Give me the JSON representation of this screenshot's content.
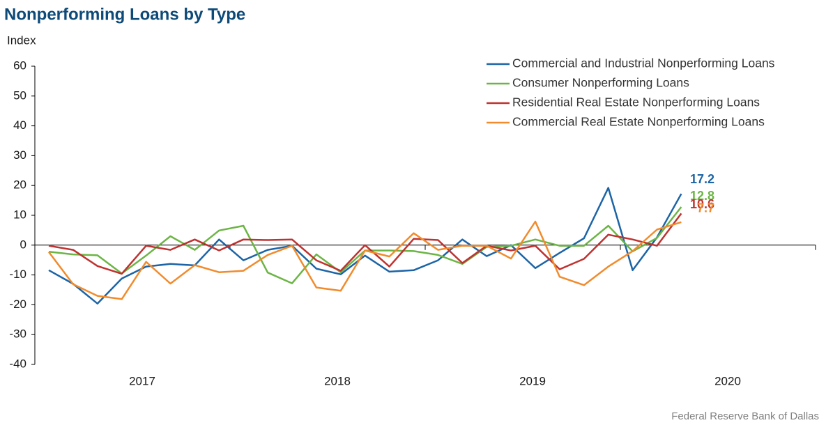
{
  "chart_data": {
    "type": "line",
    "title": "Nonperforming Loans by Type",
    "y_axis_label": "Index",
    "source": "Federal Reserve Bank of Dallas",
    "categories": [
      null,
      null,
      null,
      null,
      null,
      null,
      null,
      null,
      null,
      null,
      null,
      null,
      null,
      null,
      null,
      null,
      null,
      null,
      null,
      null,
      null,
      null,
      null,
      null,
      null,
      null,
      null
    ],
    "x_labels": [
      "2017",
      "2018",
      "2019",
      "2020"
    ],
    "ylim": [
      -40,
      60
    ],
    "yticks": [
      -40,
      -30,
      -20,
      -10,
      0,
      10,
      20,
      30,
      40,
      50,
      60
    ],
    "grid": false,
    "legend": "top-right",
    "series": [
      {
        "name": "Commercial and Industrial Nonperforming Loans",
        "color": "#1c64a6",
        "values": [
          -8.4,
          -13,
          -19.6,
          -11.2,
          -7.2,
          -6.3,
          -6.8,
          1.9,
          -5.1,
          -1.6,
          -0.2,
          -7.9,
          -9.8,
          -3.5,
          -8.9,
          -8.4,
          -5.1,
          1.9,
          -3.7,
          0,
          -7.7,
          -2.6,
          2.3,
          19.2,
          -8.4,
          2.6,
          17.2
        ]
      },
      {
        "name": "Consumer Nonperforming Loans",
        "color": "#6cb545",
        "values": [
          -2.2,
          -3.1,
          -3.4,
          -9.5,
          -3.5,
          3.0,
          -1.6,
          4.9,
          6.5,
          -9.2,
          -12.8,
          -3.1,
          -9.1,
          -1.8,
          -1.8,
          -2.0,
          -3.3,
          -6.3,
          -0.6,
          -0.2,
          1.9,
          -0.2,
          -0.2,
          6.5,
          -2.1,
          2.4,
          12.8
        ]
      },
      {
        "name": "Residential Real Estate Nonperforming Loans",
        "color": "#be3230",
        "values": [
          -0.2,
          -1.6,
          -7.0,
          -9.6,
          -0.2,
          -1.6,
          1.9,
          -1.8,
          1.9,
          1.7,
          1.9,
          -5.1,
          -8.6,
          0,
          -7.2,
          2.1,
          1.7,
          -6.0,
          -0.2,
          -1.8,
          -0.2,
          -8.1,
          -4.6,
          3.5,
          1.9,
          -0.2,
          10.6
        ]
      },
      {
        "name": "Commercial Real Estate Nonperforming Loans",
        "color": "#f18b2c",
        "values": [
          -2.3,
          -13.1,
          -17.0,
          -18.1,
          -5.6,
          -12.9,
          -6.7,
          -9.1,
          -8.6,
          -3.3,
          -0.2,
          -14.2,
          -15.3,
          -1.8,
          -3.8,
          4.0,
          -1.6,
          -0.2,
          -0.2,
          -4.5,
          7.9,
          -10.6,
          -13.4,
          -7.2,
          -2.0,
          5.2,
          7.7
        ]
      }
    ]
  }
}
